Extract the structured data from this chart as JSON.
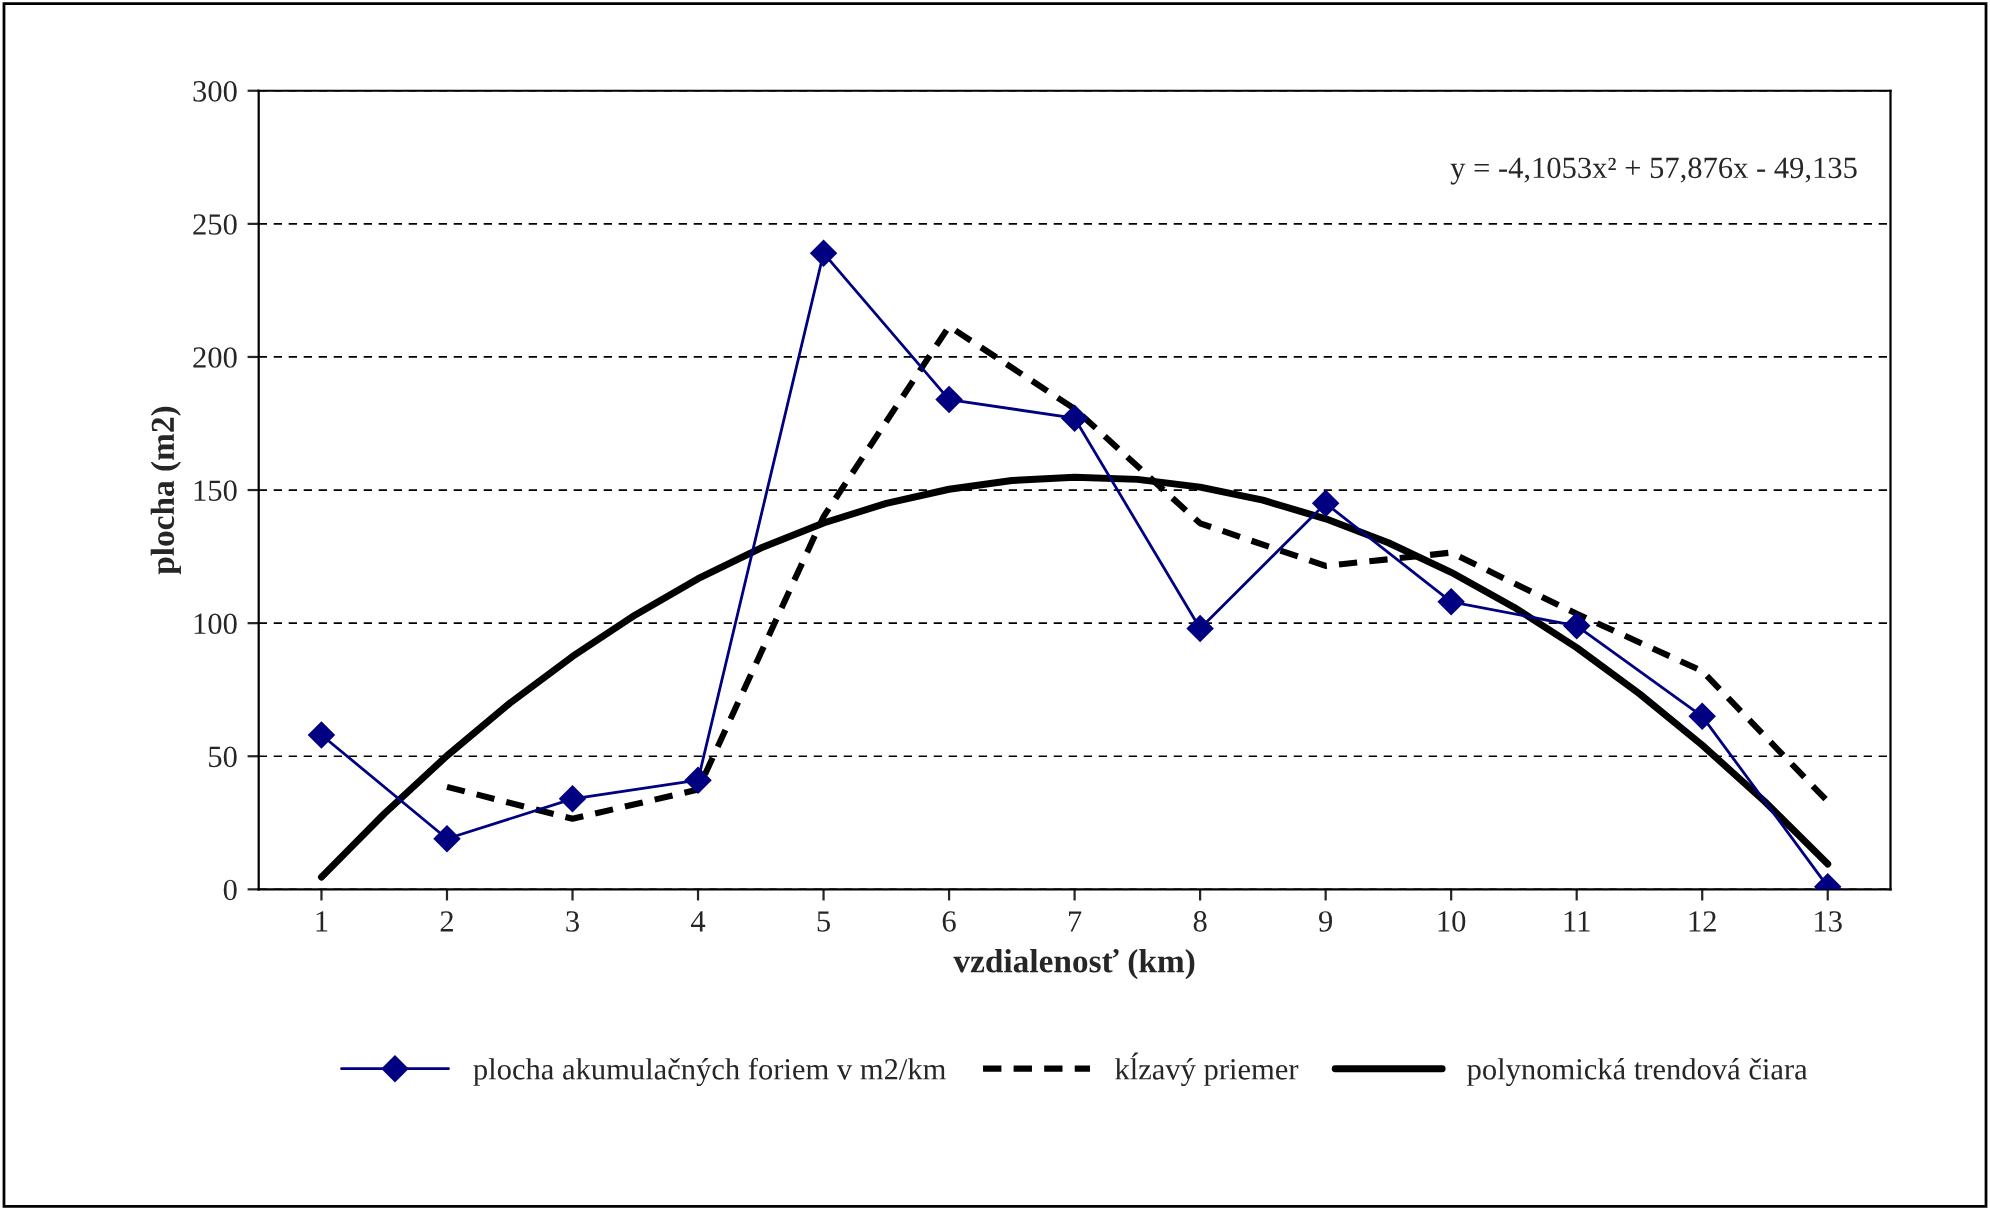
{
  "chart_data": {
    "type": "line",
    "xlabel": "vzdialenosť (km)",
    "ylabel": "plocha (m2)",
    "x": [
      1,
      2,
      3,
      4,
      5,
      6,
      7,
      8,
      9,
      10,
      11,
      12,
      13
    ],
    "xlim": [
      0.5,
      13.5
    ],
    "xticks": [
      1,
      2,
      3,
      4,
      5,
      6,
      7,
      8,
      9,
      10,
      11,
      12,
      13
    ],
    "ylim": [
      0,
      300
    ],
    "yticks": [
      0,
      50,
      100,
      150,
      200,
      250,
      300
    ],
    "grid": "y",
    "legend": "bottom",
    "annotations": [
      "y = -4,1053x² + 57,876x - 49,135"
    ],
    "series": [
      {
        "name": "plocha akumulačných foriem v m2/km",
        "color": "#000080",
        "marker": "diamond",
        "line_style": "solid",
        "values": [
          58,
          19,
          34,
          41,
          239,
          184,
          177,
          98,
          145,
          108,
          99,
          65,
          1
        ]
      },
      {
        "name": "kĺzavý priemer",
        "color": "#000000",
        "marker": "none",
        "line_style": "dashed",
        "values": [
          null,
          38.5,
          26.5,
          37.5,
          140,
          211.5,
          180.5,
          137.5,
          121.5,
          126.5,
          103.5,
          82,
          33
        ]
      },
      {
        "name": "polynomická trendová čiara",
        "color": "#000000",
        "marker": "none",
        "line_style": "solid",
        "x": [
          1,
          1.5,
          2,
          2.5,
          3,
          3.5,
          4,
          4.5,
          5,
          5.5,
          6,
          6.5,
          7,
          7.5,
          8,
          8.5,
          9,
          9.5,
          10,
          10.5,
          11,
          11.5,
          12,
          12.5,
          13
        ],
        "values": [
          4.6,
          28.4,
          50.2,
          69.9,
          87.5,
          103.1,
          116.7,
          128.2,
          137.6,
          145.0,
          150.3,
          153.6,
          154.8,
          154.0,
          151.1,
          146.2,
          139.2,
          130.2,
          119.1,
          106.0,
          90.8,
          73.5,
          54.2,
          32.9,
          9.5
        ]
      }
    ]
  }
}
